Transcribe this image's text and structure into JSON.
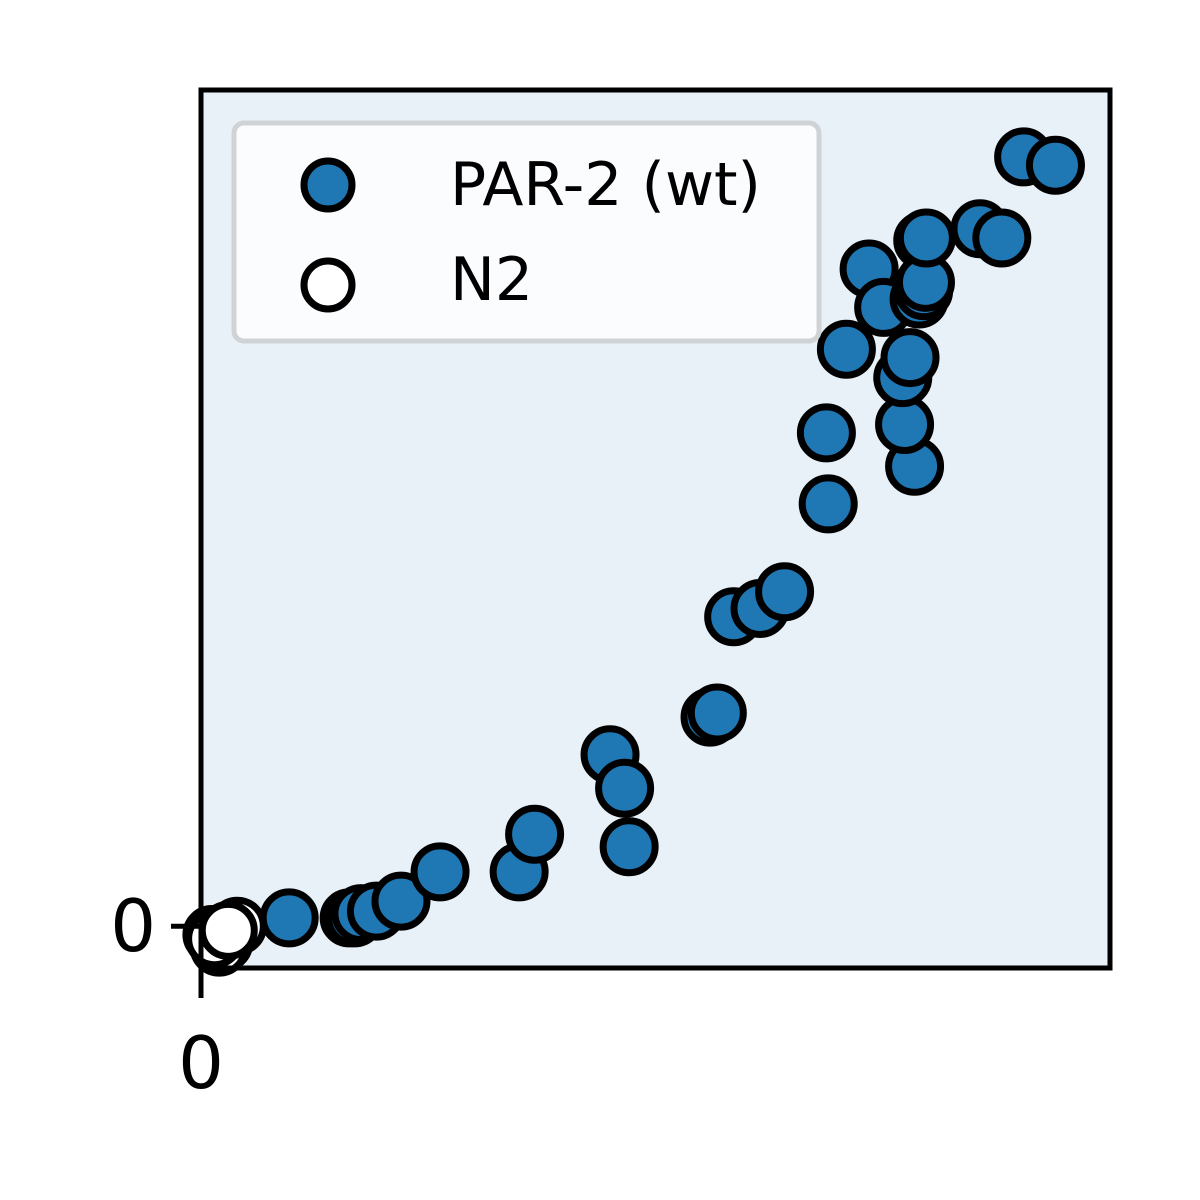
{
  "chart_data": {
    "type": "scatter",
    "title": "",
    "xlabel": "",
    "ylabel": "",
    "x_ticks": [
      "0"
    ],
    "y_ticks": [
      "0"
    ],
    "xlim": [
      0,
      1
    ],
    "ylim": [
      -0.05,
      1
    ],
    "grid": false,
    "legend_position": "top-left",
    "colors": {
      "background": "#e8f0f8",
      "wt_fill": "#1f77b4",
      "n2_fill": "#ffffff",
      "edge": "#000000"
    },
    "series": [
      {
        "name": "PAR-2 (wt)",
        "x": [
          0.097,
          0.163,
          0.169,
          0.176,
          0.193,
          0.22,
          0.263,
          0.35,
          0.367,
          0.45,
          0.466,
          0.471,
          0.56,
          0.568,
          0.586,
          0.615,
          0.642,
          0.69,
          0.688,
          0.71,
          0.735,
          0.751,
          0.785,
          0.774,
          0.772,
          0.78,
          0.79,
          0.794,
          0.795,
          0.797,
          0.798,
          0.857,
          0.881,
          0.905,
          0.94
        ],
        "y": [
          0.01,
          0.01,
          0.01,
          0.015,
          0.018,
          0.03,
          0.065,
          0.065,
          0.11,
          0.205,
          0.165,
          0.095,
          0.25,
          0.255,
          0.37,
          0.38,
          0.4,
          0.505,
          0.59,
          0.69,
          0.786,
          0.74,
          0.55,
          0.6,
          0.656,
          0.68,
          0.75,
          0.82,
          0.76,
          0.77,
          0.823,
          0.834,
          0.823,
          0.92,
          0.91
        ]
      },
      {
        "name": "N2",
        "x": [
          0.012,
          0.04,
          0.025,
          0.02,
          0.015,
          0.03
        ],
        "y": [
          -0.01,
          0.0,
          -0.02,
          -0.025,
          -0.015,
          -0.005
        ]
      }
    ]
  }
}
